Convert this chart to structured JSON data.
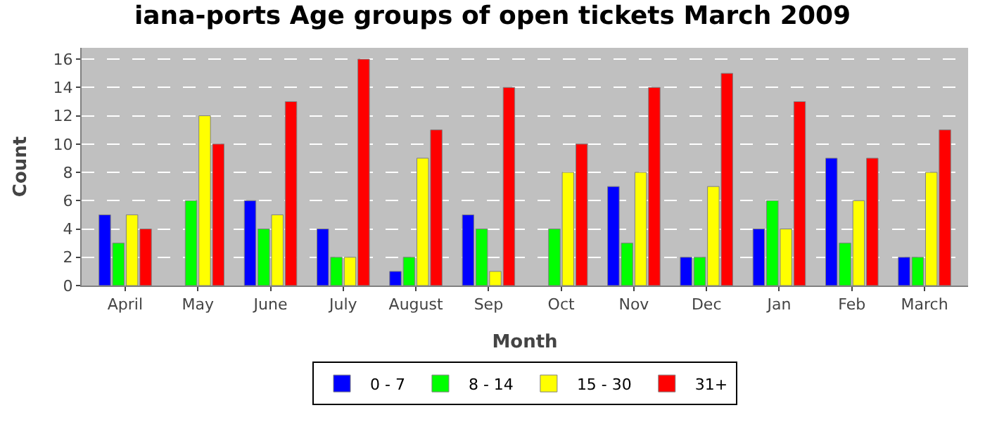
{
  "chart_data": {
    "type": "bar",
    "title": "iana-ports Age groups of open tickets March 2009",
    "xlabel": "Month",
    "ylabel": "Count",
    "categories": [
      "April",
      "May",
      "June",
      "July",
      "August",
      "Sep",
      "Oct",
      "Nov",
      "Dec",
      "Jan",
      "Feb",
      "March"
    ],
    "series": [
      {
        "name": "0 - 7",
        "color": "#0000ff",
        "values": [
          5,
          0,
          6,
          4,
          1,
          5,
          0,
          7,
          2,
          4,
          9,
          2
        ]
      },
      {
        "name": "8 - 14",
        "color": "#00ff00",
        "values": [
          3,
          6,
          4,
          2,
          2,
          4,
          4,
          3,
          2,
          6,
          3,
          2
        ]
      },
      {
        "name": "15 - 30",
        "color": "#ffff00",
        "values": [
          5,
          12,
          5,
          2,
          9,
          1,
          8,
          8,
          7,
          4,
          6,
          8
        ]
      },
      {
        "name": "31+",
        "color": "#ff0000",
        "values": [
          4,
          10,
          13,
          16,
          11,
          14,
          10,
          14,
          15,
          13,
          9,
          11
        ]
      }
    ],
    "ylim": [
      0,
      16.8
    ],
    "yticks": [
      0,
      2,
      4,
      6,
      8,
      10,
      12,
      14,
      16
    ],
    "grid": "y",
    "legend": "bottom"
  }
}
